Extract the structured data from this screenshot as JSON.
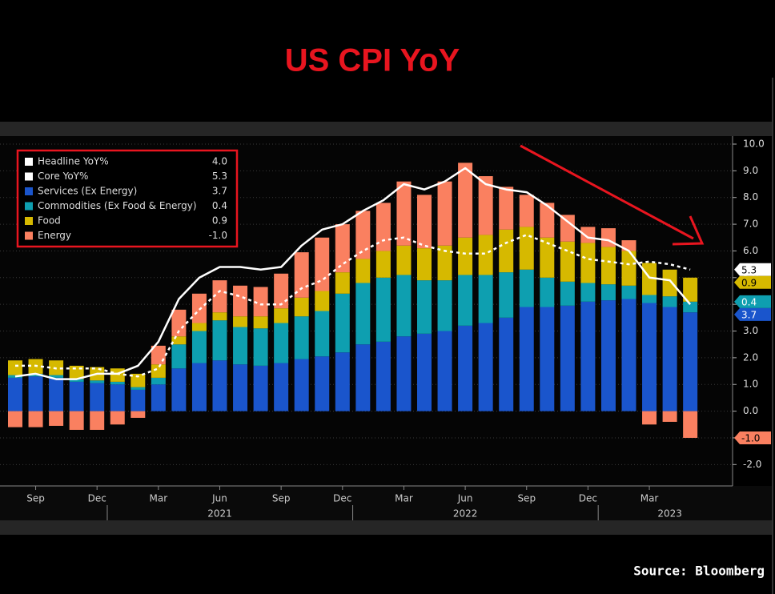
{
  "chart_data": {
    "type": "bar",
    "title": "US CPI YoY",
    "source": "Source: Bloomberg",
    "categories": [
      null,
      "Sep",
      null,
      null,
      "Dec",
      null,
      null,
      "Mar",
      null,
      null,
      "Jun",
      null,
      null,
      "Sep",
      null,
      null,
      "Dec",
      null,
      null,
      "Mar",
      null,
      null,
      "Jun",
      null,
      null,
      "Sep",
      null,
      null,
      "Dec",
      null,
      null,
      "Mar",
      null,
      null
    ],
    "years": [
      null,
      null,
      null,
      null,
      null,
      null,
      null,
      null,
      null,
      null,
      "2021",
      null,
      null,
      null,
      null,
      null,
      null,
      null,
      null,
      null,
      null,
      null,
      "2022",
      null,
      null,
      null,
      null,
      null,
      null,
      null,
      null,
      null,
      "2023",
      null
    ],
    "ylim": [
      -2.8,
      10.3
    ],
    "yticks": [
      {
        "value": -2,
        "label": "-2.0"
      },
      {
        "value": -1,
        "label": "-1.0"
      },
      {
        "value": 0,
        "label": "0.0"
      },
      {
        "value": 1,
        "label": "1.0"
      },
      {
        "value": 2,
        "label": "2.0"
      },
      {
        "value": 3,
        "label": "3.0"
      },
      {
        "value": 4,
        "label": "4.0"
      },
      {
        "value": 5,
        "label": "5.0"
      },
      {
        "value": 6,
        "label": "6.0"
      },
      {
        "value": 7,
        "label": "7.0"
      },
      {
        "value": 8,
        "label": "8.0"
      },
      {
        "value": 9,
        "label": "9.0"
      },
      {
        "value": 10,
        "label": "10.0"
      }
    ],
    "grid": true,
    "legend": "upper left",
    "series": [
      {
        "name": "Headline YoY%",
        "type": "line",
        "color": "#ffffff",
        "dashed": false,
        "last_value_label": "4.0",
        "values": [
          1.3,
          1.4,
          1.2,
          1.2,
          1.4,
          1.4,
          1.7,
          2.6,
          4.2,
          5.0,
          5.4,
          5.4,
          5.3,
          5.4,
          6.2,
          6.8,
          7.0,
          7.5,
          7.9,
          8.5,
          8.3,
          8.6,
          9.1,
          8.5,
          8.3,
          8.2,
          7.7,
          7.1,
          6.5,
          6.4,
          6.0,
          5.0,
          4.9,
          4.0
        ]
      },
      {
        "name": "Core YoY%",
        "type": "line",
        "color": "#ffffff",
        "dashed": true,
        "last_value_label": "5.3",
        "values": [
          1.7,
          1.7,
          1.6,
          1.6,
          1.6,
          1.4,
          1.3,
          1.6,
          3.0,
          3.8,
          4.5,
          4.3,
          4.0,
          4.0,
          4.6,
          4.9,
          5.5,
          6.0,
          6.4,
          6.5,
          6.2,
          6.0,
          5.9,
          5.9,
          6.3,
          6.6,
          6.3,
          6.0,
          5.7,
          5.6,
          5.5,
          5.6,
          5.5,
          5.3
        ]
      },
      {
        "name": "Services (Ex Energy)",
        "type": "bar",
        "color": "#1a55cc",
        "last_value_label": "3.7",
        "values": [
          1.25,
          1.3,
          1.25,
          1.1,
          1.05,
          1.0,
          0.8,
          1.0,
          1.6,
          1.8,
          1.9,
          1.75,
          1.7,
          1.8,
          1.95,
          2.05,
          2.2,
          2.5,
          2.6,
          2.8,
          2.9,
          3.0,
          3.2,
          3.3,
          3.5,
          3.9,
          3.9,
          3.95,
          4.1,
          4.15,
          4.2,
          4.05,
          3.9,
          3.7
        ]
      },
      {
        "name": "Commodities (Ex Food & Energy)",
        "type": "bar",
        "color": "#0e9fb0",
        "last_value_label": "0.4",
        "values": [
          0.1,
          0.1,
          0.1,
          0.1,
          0.1,
          0.1,
          0.1,
          0.25,
          0.9,
          1.2,
          1.5,
          1.4,
          1.4,
          1.5,
          1.6,
          1.7,
          2.2,
          2.3,
          2.4,
          2.3,
          2.0,
          1.9,
          1.9,
          1.8,
          1.7,
          1.4,
          1.1,
          0.9,
          0.7,
          0.6,
          0.5,
          0.3,
          0.4,
          0.4
        ]
      },
      {
        "name": "Food",
        "type": "bar",
        "color": "#d6b900",
        "last_value_label": "0.9",
        "values": [
          0.55,
          0.55,
          0.55,
          0.5,
          0.5,
          0.5,
          0.5,
          0.5,
          0.3,
          0.3,
          0.3,
          0.4,
          0.45,
          0.55,
          0.7,
          0.75,
          0.8,
          0.9,
          1.0,
          1.1,
          1.2,
          1.3,
          1.4,
          1.5,
          1.6,
          1.6,
          1.5,
          1.5,
          1.5,
          1.4,
          1.3,
          1.2,
          1.0,
          0.9
        ]
      },
      {
        "name": "Energy",
        "type": "bar",
        "color": "#fa8060",
        "last_value_label": "-1.0",
        "values": [
          -0.6,
          -0.6,
          -0.55,
          -0.7,
          -0.7,
          -0.5,
          -0.25,
          0.7,
          1.0,
          1.1,
          1.2,
          1.15,
          1.1,
          1.3,
          1.7,
          2.0,
          1.8,
          1.8,
          1.8,
          2.4,
          2.0,
          2.4,
          2.8,
          2.2,
          1.6,
          1.2,
          1.3,
          1.0,
          0.6,
          0.7,
          0.4,
          -0.5,
          -0.4,
          -1.0
        ]
      }
    ]
  }
}
